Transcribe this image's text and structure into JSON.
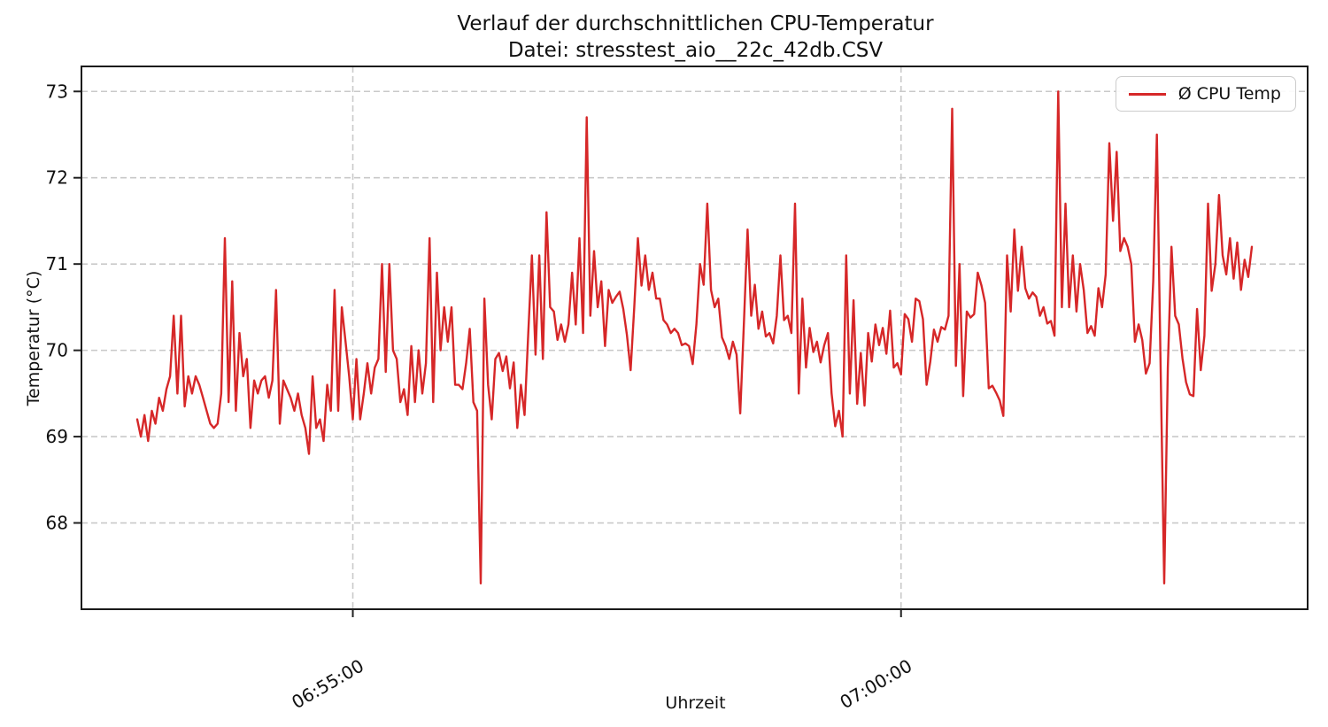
{
  "figure": {
    "background": "#ffffff"
  },
  "chart_data": {
    "type": "line",
    "title": "Verlauf der durchschnittlichen CPU-Temperatur",
    "subtitle": "Datei: stresstest_aio__22c_42db.CSV",
    "xlabel": "Uhrzeit",
    "ylabel": "Temperatur (°C)",
    "grid": true,
    "grid_style": "dashed",
    "legend_position": "upper right",
    "y_ticks": [
      68,
      69,
      70,
      71,
      72,
      73
    ],
    "ylim": [
      67.0,
      73.29
    ],
    "xlim_s": [
      -30.5,
      640.5
    ],
    "x_ticks": [
      {
        "label": "06:55:00",
        "offset_s": 118
      },
      {
        "label": "07:00:00",
        "offset_s": 418
      }
    ],
    "series": [
      {
        "name": "Ø CPU Temp",
        "color": "#d62728",
        "start_time": "06:53:02",
        "interval_s": 2,
        "values": [
          69.2,
          69.0,
          69.25,
          68.95,
          69.3,
          69.15,
          69.45,
          69.3,
          69.55,
          69.7,
          70.4,
          69.5,
          70.4,
          69.35,
          69.7,
          69.5,
          69.7,
          69.6,
          69.45,
          69.3,
          69.15,
          69.1,
          69.15,
          69.5,
          71.3,
          69.4,
          70.8,
          69.3,
          70.2,
          69.7,
          69.9,
          69.1,
          69.65,
          69.5,
          69.65,
          69.7,
          69.45,
          69.65,
          70.7,
          69.15,
          69.65,
          69.55,
          69.45,
          69.3,
          69.5,
          69.25,
          69.1,
          68.8,
          69.7,
          69.1,
          69.2,
          68.95,
          69.6,
          69.3,
          70.7,
          69.3,
          70.5,
          70.1,
          69.7,
          69.2,
          69.9,
          69.2,
          69.5,
          69.85,
          69.5,
          69.8,
          69.9,
          71.0,
          69.75,
          71.0,
          70.0,
          69.9,
          69.4,
          69.55,
          69.25,
          70.05,
          69.4,
          70.0,
          69.5,
          69.85,
          71.3,
          69.4,
          70.9,
          70.0,
          70.5,
          70.1,
          70.5,
          69.6,
          69.6,
          69.55,
          69.85,
          70.25,
          69.4,
          69.3,
          67.3,
          70.6,
          69.6,
          69.2,
          69.9,
          69.97,
          69.76,
          69.93,
          69.56,
          69.86,
          69.1,
          69.6,
          69.25,
          70.2,
          71.1,
          69.95,
          71.1,
          69.9,
          71.6,
          70.5,
          70.45,
          70.12,
          70.3,
          70.1,
          70.3,
          70.9,
          70.3,
          71.3,
          70.2,
          72.7,
          70.4,
          71.15,
          70.5,
          70.8,
          70.05,
          70.7,
          70.55,
          70.62,
          70.68,
          70.48,
          70.18,
          69.77,
          70.5,
          71.3,
          70.75,
          71.1,
          70.7,
          70.9,
          70.6,
          70.6,
          70.35,
          70.3,
          70.2,
          70.25,
          70.2,
          70.06,
          70.08,
          70.05,
          69.84,
          70.3,
          71.0,
          70.76,
          71.7,
          70.7,
          70.5,
          70.6,
          70.15,
          70.05,
          69.9,
          70.1,
          69.95,
          69.27,
          70.3,
          71.4,
          70.4,
          70.76,
          70.25,
          70.45,
          70.16,
          70.2,
          70.08,
          70.4,
          71.1,
          70.35,
          70.4,
          70.2,
          71.7,
          69.5,
          70.6,
          69.8,
          70.26,
          69.98,
          70.1,
          69.86,
          70.06,
          70.2,
          69.5,
          69.12,
          69.3,
          69.0,
          71.1,
          69.5,
          70.58,
          69.38,
          69.97,
          69.36,
          70.2,
          69.87,
          70.3,
          70.06,
          70.26,
          69.96,
          70.46,
          69.8,
          69.85,
          69.72,
          70.42,
          70.36,
          70.1,
          70.6,
          70.57,
          70.36,
          69.6,
          69.87,
          70.24,
          70.1,
          70.27,
          70.24,
          70.4,
          72.8,
          69.82,
          71.0,
          69.47,
          70.45,
          70.38,
          70.42,
          70.9,
          70.75,
          70.55,
          69.56,
          69.59,
          69.51,
          69.42,
          69.24,
          71.1,
          70.45,
          71.4,
          70.69,
          71.2,
          70.72,
          70.6,
          70.67,
          70.62,
          70.4,
          70.5,
          70.31,
          70.34,
          70.17,
          73.0,
          70.5,
          71.7,
          70.5,
          71.1,
          70.45,
          71.0,
          70.7,
          70.2,
          70.28,
          70.17,
          70.72,
          70.5,
          70.88,
          72.4,
          71.5,
          72.3,
          71.15,
          71.3,
          71.2,
          71.0,
          70.1,
          70.3,
          70.12,
          69.73,
          69.85,
          70.8,
          72.5,
          69.9,
          67.3,
          69.8,
          71.2,
          70.4,
          70.3,
          69.91,
          69.63,
          69.49,
          69.47,
          70.48,
          69.77,
          70.17,
          71.7,
          70.69,
          71.0,
          71.8,
          71.1,
          70.88,
          71.3,
          70.83,
          71.25,
          70.7,
          71.05,
          70.85,
          71.2
        ]
      }
    ]
  }
}
